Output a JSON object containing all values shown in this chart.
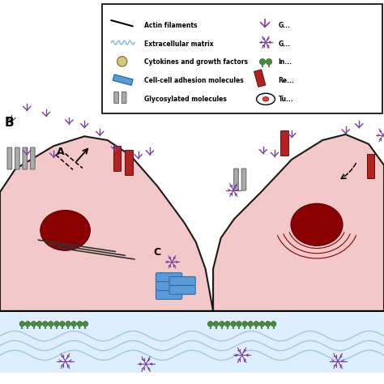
{
  "bg_color": "#ffffff",
  "cell_color": "#f2c8c8",
  "cell_outline": "#1a1a1a",
  "nucleus_color": "#8b0000",
  "ecm_color": "#ddeeff",
  "ecm_line_color": "#a0c8e0",
  "green_color": "#4a8c3f",
  "blue_adhesion_color": "#5b9bd5",
  "red_receptor_color": "#b22222",
  "purple_color": "#7b3f9e",
  "gray_color": "#999999",
  "legend_entries_left": [
    "Actin filaments",
    "Extracellular matrix",
    "Cytokines and growth factors",
    "Cell-cell adhesion molecules",
    "Glycosylated molecules"
  ],
  "legend_entries_right": [
    "G...",
    "G...",
    "In...",
    "Re...",
    "Tu..."
  ]
}
